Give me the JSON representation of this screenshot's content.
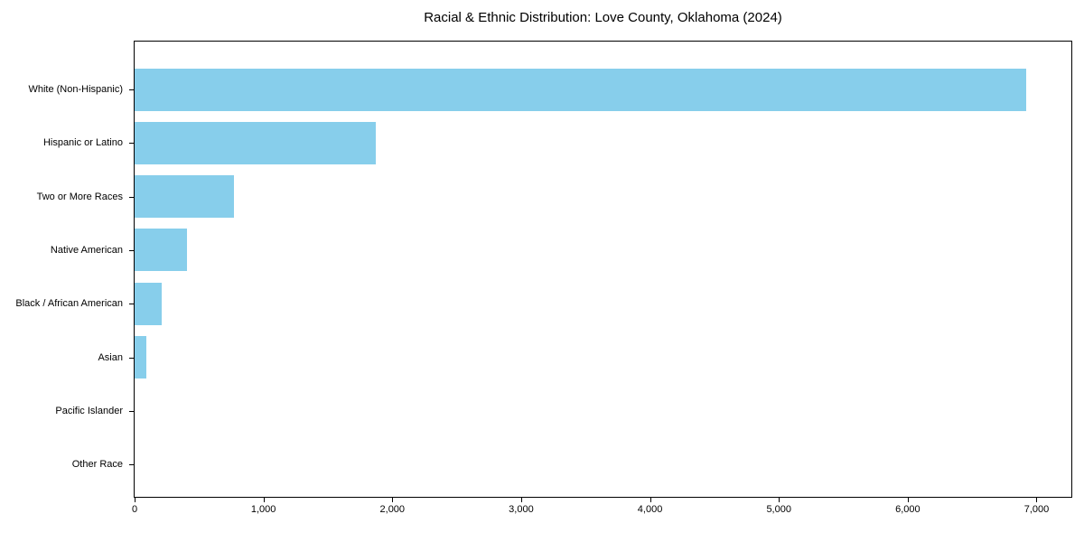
{
  "title": "Racial & Ethnic Distribution: Love County, Oklahoma (2024)",
  "colors": {
    "bar": "#87CEEB",
    "axis": "#000000",
    "text": "#000000",
    "background": "#FFFFFF"
  },
  "chart_data": {
    "type": "bar",
    "orientation": "horizontal",
    "title": "Racial & Ethnic Distribution: Love County, Oklahoma (2024)",
    "xlabel": "",
    "ylabel": "",
    "categories": [
      "White (Non-Hispanic)",
      "Hispanic or Latino",
      "Two or More Races",
      "Native American",
      "Black / African American",
      "Asian",
      "Pacific Islander",
      "Other Race"
    ],
    "values": [
      6920,
      1870,
      770,
      410,
      210,
      90,
      0,
      0
    ],
    "xlim": [
      0,
      7270
    ],
    "x_ticks": [
      0,
      1000,
      2000,
      3000,
      4000,
      5000,
      6000,
      7000
    ],
    "x_tick_labels": [
      "0",
      "1,000",
      "2,000",
      "3,000",
      "4,000",
      "5,000",
      "6,000",
      "7,000"
    ],
    "grid": false,
    "legend": null,
    "bar_color": "#87CEEB"
  }
}
